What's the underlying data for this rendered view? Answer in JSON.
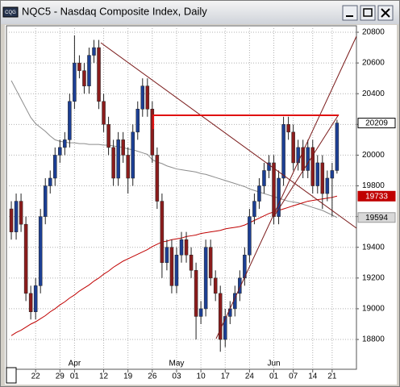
{
  "window_title": "NQC5 - Nasdaq Composite Index, Daily",
  "chart_data": {
    "type": "candlestick",
    "up_color": "#1c3f94",
    "down_color": "#8b1c1c",
    "ylim": [
      18606,
      20842
    ],
    "yticks": [
      18800,
      19000,
      19200,
      19400,
      19600,
      19800,
      20000,
      20200,
      20400,
      20600,
      20800
    ],
    "grid": true,
    "categories": [
      null,
      null,
      null,
      null,
      null,
      "22",
      null,
      null,
      null,
      null,
      "29",
      null,
      null,
      "01",
      null,
      null,
      null,
      null,
      null,
      "12",
      null,
      null,
      null,
      null,
      "19",
      null,
      null,
      null,
      null,
      "26",
      null,
      null,
      null,
      null,
      "03",
      null,
      null,
      null,
      null,
      "10",
      null,
      null,
      null,
      null,
      "17",
      null,
      null,
      null,
      null,
      "24",
      null,
      null,
      null,
      null,
      "01",
      null,
      null,
      null,
      "07",
      null,
      null,
      null,
      "14",
      null,
      null,
      null,
      "21",
      null
    ],
    "months": [
      null,
      null,
      null,
      null,
      null,
      null,
      null,
      null,
      null,
      null,
      null,
      null,
      null,
      "Apr",
      null,
      null,
      null,
      null,
      null,
      null,
      null,
      null,
      null,
      null,
      null,
      null,
      null,
      null,
      null,
      null,
      null,
      null,
      null,
      null,
      "May",
      null,
      null,
      null,
      null,
      null,
      null,
      null,
      null,
      null,
      null,
      null,
      null,
      null,
      null,
      null,
      null,
      null,
      null,
      null,
      "Jun",
      null,
      null,
      null,
      null,
      null,
      null,
      null,
      null,
      null,
      null,
      null,
      null,
      null
    ],
    "open": [
      19650,
      19500,
      19700,
      19550,
      19100,
      18980,
      19150,
      19600,
      19800,
      19850,
      20000,
      20050,
      20100,
      20350,
      20600,
      20550,
      20450,
      20650,
      20700,
      20350,
      20200,
      20050,
      19850,
      20100,
      20000,
      19850,
      20150,
      20300,
      20450,
      20300,
      20000,
      19700,
      19300,
      19400,
      19150,
      19350,
      19450,
      19350,
      19250,
      18950,
      19000,
      19400,
      19200,
      19100,
      18800,
      18950,
      19000,
      19100,
      19200,
      19350,
      19600,
      19700,
      19800,
      19900,
      19950,
      19600,
      19850,
      20200,
      20150,
      19950,
      20050,
      19900,
      20050,
      19800,
      19950,
      19750,
      19850,
      19900
    ],
    "high": [
      19700,
      19750,
      19750,
      19600,
      19150,
      19200,
      19650,
      19850,
      19900,
      20050,
      20100,
      20150,
      20400,
      20780,
      20650,
      20600,
      20700,
      20750,
      20750,
      20400,
      20250,
      20100,
      20150,
      20150,
      20050,
      20200,
      20350,
      20500,
      20500,
      20350,
      20050,
      19750,
      19450,
      19450,
      19400,
      19500,
      19500,
      19400,
      19300,
      19050,
      19450,
      19450,
      19250,
      19150,
      19000,
      19050,
      19150,
      19250,
      19400,
      19650,
      19750,
      19850,
      19950,
      20000,
      20000,
      19900,
      20250,
      20250,
      20200,
      20100,
      20100,
      20100,
      20100,
      20000,
      20000,
      19900,
      19950,
      20230
    ],
    "low": [
      19450,
      19450,
      19500,
      19050,
      18930,
      18930,
      19100,
      19550,
      19750,
      19800,
      19950,
      20000,
      20050,
      20300,
      20500,
      20400,
      20400,
      20600,
      20300,
      20150,
      20000,
      19800,
      19800,
      19950,
      19750,
      19800,
      20100,
      20250,
      20250,
      19950,
      19650,
      19200,
      19250,
      19100,
      19100,
      19300,
      19300,
      19200,
      18800,
      18900,
      18950,
      19150,
      19050,
      18720,
      18750,
      18900,
      18950,
      19050,
      19150,
      19300,
      19550,
      19650,
      19750,
      19850,
      19550,
      19550,
      19800,
      20100,
      19900,
      19900,
      19850,
      19850,
      19750,
      19750,
      19650,
      19700,
      19600,
      19880
    ],
    "close": [
      19500,
      19700,
      19550,
      19100,
      18980,
      19150,
      19600,
      19800,
      19850,
      20000,
      20050,
      20100,
      20350,
      20600,
      20550,
      20450,
      20650,
      20700,
      20350,
      20200,
      20050,
      19850,
      20100,
      20000,
      19850,
      20150,
      20300,
      20450,
      20300,
      20000,
      19700,
      19300,
      19400,
      19150,
      19350,
      19450,
      19350,
      19250,
      18950,
      19000,
      19400,
      19200,
      19100,
      18800,
      18950,
      19000,
      19100,
      19200,
      19350,
      19600,
      19700,
      19800,
      19900,
      19950,
      19600,
      19850,
      20200,
      20150,
      19950,
      20050,
      19900,
      20050,
      19800,
      19950,
      19750,
      19850,
      19900,
      20209
    ],
    "moving_averages": [
      {
        "color": "#8c8c8c",
        "values": [
          20485,
          20425,
          20365,
          20305,
          20245,
          20205,
          20180,
          20155,
          20125,
          20100,
          20090,
          20085,
          20080,
          20080,
          20075,
          20075,
          20070,
          20070,
          20070,
          20065,
          20065,
          20060,
          20055,
          20050,
          20040,
          20035,
          20025,
          20015,
          20005,
          19970,
          19955,
          19945,
          19930,
          19920,
          19910,
          19905,
          19900,
          19895,
          19890,
          19880,
          19875,
          19865,
          19855,
          19845,
          19835,
          19825,
          19815,
          19805,
          19795,
          19780,
          19770,
          19760,
          19750,
          19740,
          19730,
          19720,
          19710,
          19700,
          19695,
          19690,
          19680,
          19670,
          19660,
          19650,
          19640,
          19625,
          19610,
          19594
        ]
      },
      {
        "color": "#c00000",
        "values": [
          18825,
          18845,
          18860,
          18880,
          18900,
          18915,
          18935,
          18955,
          18980,
          19000,
          19025,
          19045,
          19070,
          19090,
          19115,
          19135,
          19155,
          19180,
          19200,
          19225,
          19245,
          19270,
          19290,
          19310,
          19325,
          19340,
          19355,
          19370,
          19385,
          19405,
          19420,
          19435,
          19440,
          19450,
          19455,
          19460,
          19470,
          19475,
          19480,
          19490,
          19495,
          19500,
          19505,
          19510,
          19520,
          19525,
          19530,
          19535,
          19545,
          19560,
          19575,
          19590,
          19605,
          19620,
          19630,
          19640,
          19650,
          19660,
          19670,
          19680,
          19690,
          19700,
          19705,
          19710,
          19715,
          19720,
          19725,
          19733
        ]
      }
    ]
  }
}
